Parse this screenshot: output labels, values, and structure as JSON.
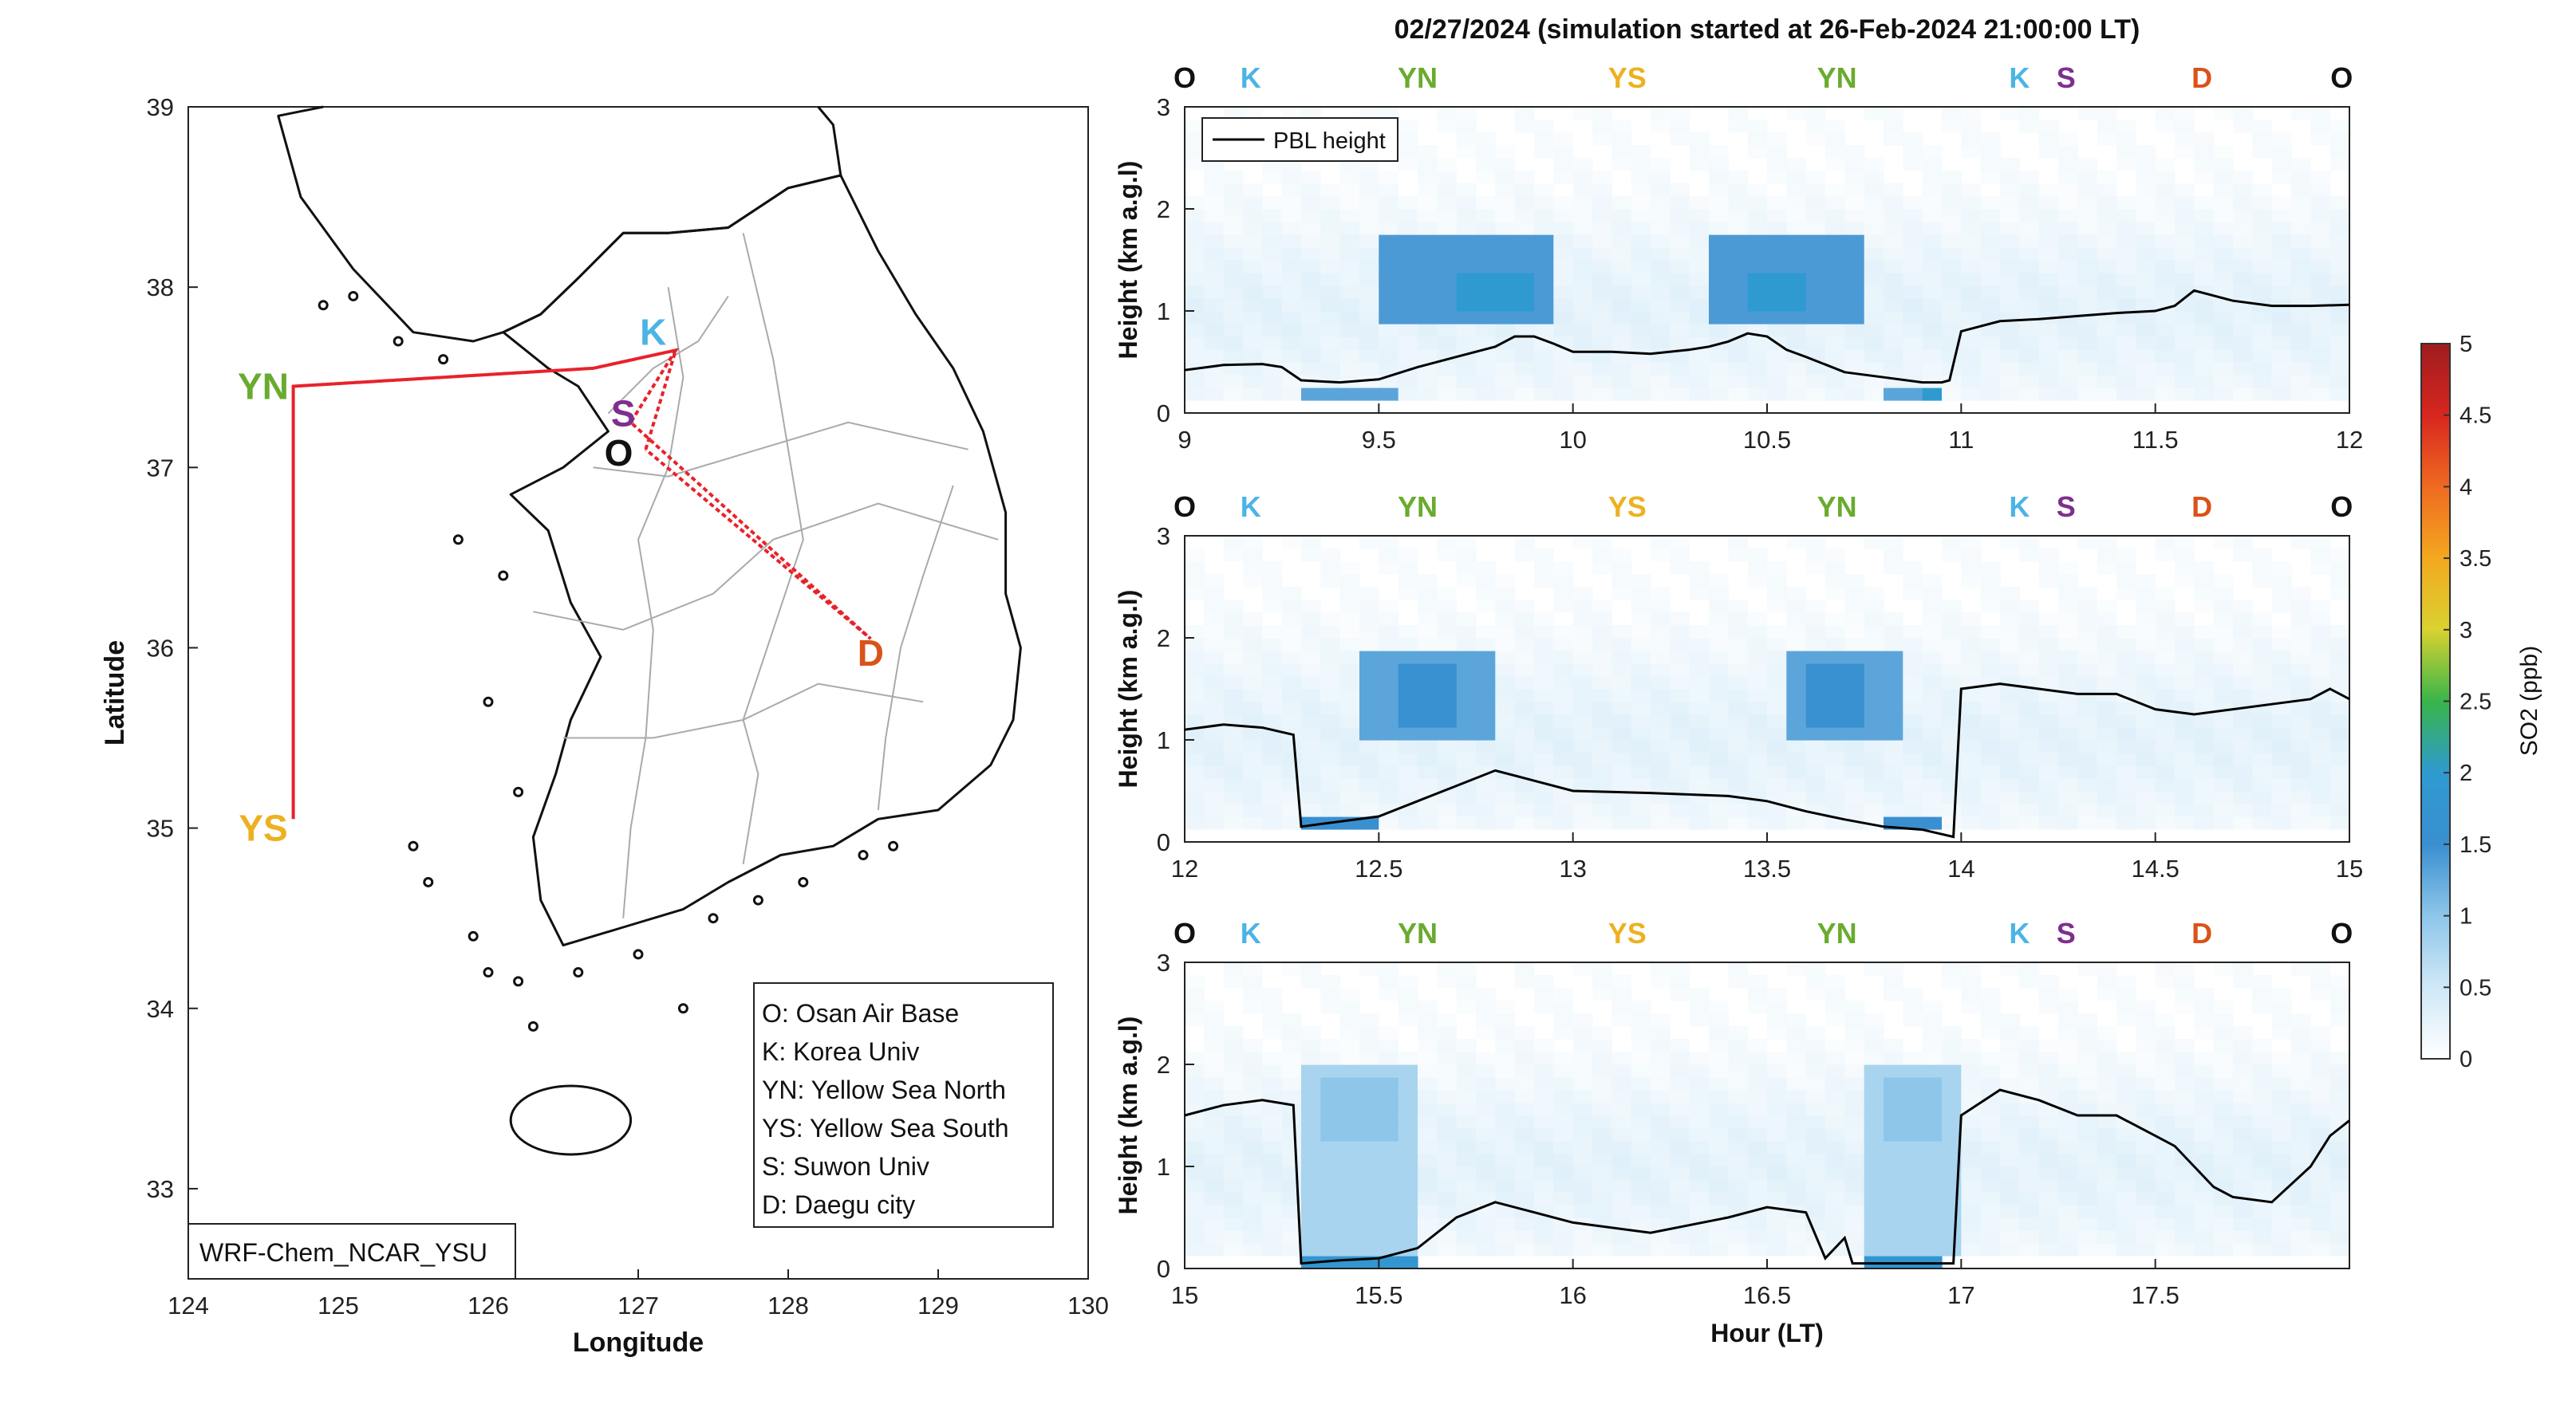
{
  "title": "02/27/2024 (simulation started at 26-Feb-2024 21:00:00 LT)",
  "colors": {
    "O": "#111111",
    "K": "#4cb4e4",
    "YN": "#6aab2e",
    "YS": "#edb120",
    "S": "#7e2f8e",
    "D": "#d95319",
    "track": "#e8222a",
    "pbl": "#000000"
  },
  "map": {
    "xlabel": "Longitude",
    "ylabel": "Latitude",
    "xlim": [
      124,
      130
    ],
    "ylim": [
      32.5,
      39
    ],
    "xticks": [
      "124",
      "125",
      "126",
      "127",
      "128",
      "129",
      "130"
    ],
    "yticks": [
      "33",
      "34",
      "35",
      "36",
      "37",
      "38",
      "39"
    ],
    "model_label": "WRF-Chem_NCAR_YSU",
    "sites": [
      {
        "code": "YN",
        "lon": 124.7,
        "lat": 37.45,
        "label_lon": 124.5,
        "label_lat": 37.45
      },
      {
        "code": "YS",
        "lon": 124.7,
        "lat": 35.05,
        "label_lon": 124.5,
        "label_lat": 35.0
      },
      {
        "code": "K",
        "lon": 127.25,
        "lat": 37.6,
        "label_lon": 127.1,
        "label_lat": 37.75
      },
      {
        "code": "S",
        "lon": 126.95,
        "lat": 37.25,
        "label_lon": 126.9,
        "label_lat": 37.3
      },
      {
        "code": "O",
        "lon": 127.05,
        "lat": 37.1,
        "label_lon": 126.87,
        "label_lat": 37.08
      },
      {
        "code": "D",
        "lon": 128.55,
        "lat": 36.05,
        "label_lon": 128.55,
        "label_lat": 35.97
      }
    ],
    "track": [
      [
        127.05,
        37.1
      ],
      [
        127.25,
        37.65
      ],
      [
        126.7,
        37.55
      ],
      [
        124.7,
        37.45
      ],
      [
        124.7,
        35.05
      ],
      [
        124.7,
        37.45
      ],
      [
        126.7,
        37.55
      ],
      [
        127.25,
        37.65
      ],
      [
        126.95,
        37.25
      ],
      [
        128.55,
        36.05
      ],
      [
        127.05,
        37.1
      ]
    ],
    "legend": [
      "O: Osan Air Base",
      "K: Korea Univ",
      "YN: Yellow Sea North",
      "YS: Yellow Sea South",
      "S: Suwon Univ",
      "D: Daegu city"
    ]
  },
  "chart_data": {
    "type": "heatmap",
    "ylabel": "Height (km a.g.l)",
    "xlabel": "Hour (LT)",
    "ylim": [
      0,
      3
    ],
    "yticks": [
      "0",
      "1",
      "2",
      "3"
    ],
    "legend": {
      "entries": [
        "PBL height"
      ],
      "placement": "top-left"
    },
    "colorbar": {
      "label": "SO2 (ppb)",
      "range": [
        0,
        5
      ],
      "ticks": [
        "0",
        "0.5",
        "1",
        "1.5",
        "2",
        "2.5",
        "3",
        "3.5",
        "4",
        "4.5",
        "5"
      ],
      "stops": [
        "#ffffff",
        "#cfe8f7",
        "#8ec6ea",
        "#3a8fd0",
        "#2f9ad0",
        "#39b54a",
        "#d9d230",
        "#f3a81f",
        "#ef6a21",
        "#d8261f",
        "#9e1c1f"
      ]
    },
    "panels": [
      {
        "xlim": [
          9,
          12
        ],
        "xticks": [
          "9",
          "9.5",
          "10",
          "10.5",
          "11",
          "11.5",
          "12"
        ],
        "show_legend": true,
        "site_sequence": [
          {
            "code": "O",
            "hour": 9.0
          },
          {
            "code": "K",
            "hour": 9.17
          },
          {
            "code": "YN",
            "hour": 9.6
          },
          {
            "code": "YS",
            "hour": 10.14
          },
          {
            "code": "YN",
            "hour": 10.68
          },
          {
            "code": "K",
            "hour": 11.15
          },
          {
            "code": "S",
            "hour": 11.27
          },
          {
            "code": "D",
            "hour": 11.62
          },
          {
            "code": "O",
            "hour": 11.98
          }
        ],
        "pbl_hours": [
          9.0,
          9.1,
          9.2,
          9.25,
          9.3,
          9.4,
          9.5,
          9.6,
          9.7,
          9.8,
          9.85,
          9.9,
          9.95,
          10.0,
          10.1,
          10.2,
          10.3,
          10.35,
          10.4,
          10.45,
          10.5,
          10.55,
          10.6,
          10.7,
          10.8,
          10.9,
          10.95,
          10.97,
          11.0,
          11.1,
          11.2,
          11.3,
          11.4,
          11.5,
          11.55,
          11.6,
          11.65,
          11.7,
          11.8,
          11.9,
          12.0
        ],
        "pbl_km": [
          0.42,
          0.47,
          0.48,
          0.45,
          0.32,
          0.3,
          0.33,
          0.45,
          0.55,
          0.65,
          0.75,
          0.75,
          0.68,
          0.6,
          0.6,
          0.58,
          0.62,
          0.65,
          0.7,
          0.78,
          0.75,
          0.62,
          0.55,
          0.4,
          0.35,
          0.3,
          0.3,
          0.32,
          0.8,
          0.9,
          0.92,
          0.95,
          0.98,
          1.0,
          1.05,
          1.2,
          1.15,
          1.1,
          1.05,
          1.05,
          1.06
        ],
        "plumes": [
          {
            "h0": 9.5,
            "h1": 9.95,
            "z0": 0.9,
            "z1": 1.7,
            "c": 1.4
          },
          {
            "h0": 9.7,
            "h1": 9.9,
            "z0": 1.05,
            "z1": 1.4,
            "c": 2.0
          },
          {
            "h0": 10.35,
            "h1": 10.75,
            "z0": 0.9,
            "z1": 1.7,
            "c": 1.4
          },
          {
            "h0": 10.45,
            "h1": 10.6,
            "z0": 1.05,
            "z1": 1.4,
            "c": 2.0
          },
          {
            "h0": 9.3,
            "h1": 9.55,
            "z0": 0.1,
            "z1": 0.3,
            "c": 1.3
          },
          {
            "h0": 10.8,
            "h1": 10.97,
            "z0": 0.1,
            "z1": 0.3,
            "c": 1.3
          },
          {
            "h0": 10.9,
            "h1": 10.97,
            "z0": 0.1,
            "z1": 0.25,
            "c": 2.0
          }
        ]
      },
      {
        "xlim": [
          12,
          15
        ],
        "xticks": [
          "12",
          "12.5",
          "13",
          "13.5",
          "14",
          "14.5",
          "15"
        ],
        "show_legend": false,
        "site_sequence": [
          {
            "code": "O",
            "hour": 12.0
          },
          {
            "code": "K",
            "hour": 12.17
          },
          {
            "code": "YN",
            "hour": 12.6
          },
          {
            "code": "YS",
            "hour": 13.14
          },
          {
            "code": "YN",
            "hour": 13.68
          },
          {
            "code": "K",
            "hour": 14.15
          },
          {
            "code": "S",
            "hour": 14.27
          },
          {
            "code": "D",
            "hour": 14.62
          },
          {
            "code": "O",
            "hour": 14.98
          }
        ],
        "pbl_hours": [
          12.0,
          12.1,
          12.2,
          12.28,
          12.3,
          12.4,
          12.5,
          12.6,
          12.7,
          12.8,
          12.9,
          13.0,
          13.2,
          13.4,
          13.5,
          13.6,
          13.7,
          13.8,
          13.9,
          13.98,
          14.0,
          14.1,
          14.2,
          14.3,
          14.4,
          14.5,
          14.6,
          14.7,
          14.8,
          14.9,
          14.95,
          15.0
        ],
        "pbl_km": [
          1.1,
          1.15,
          1.12,
          1.05,
          0.15,
          0.2,
          0.25,
          0.4,
          0.55,
          0.7,
          0.6,
          0.5,
          0.48,
          0.45,
          0.4,
          0.3,
          0.22,
          0.15,
          0.12,
          0.05,
          1.5,
          1.55,
          1.5,
          1.45,
          1.45,
          1.3,
          1.25,
          1.3,
          1.35,
          1.4,
          1.5,
          1.4
        ],
        "plumes": [
          {
            "h0": 12.45,
            "h1": 12.8,
            "z0": 1.0,
            "z1": 1.9,
            "c": 1.3
          },
          {
            "h0": 12.55,
            "h1": 12.72,
            "z0": 1.1,
            "z1": 1.7,
            "c": 1.6
          },
          {
            "h0": 13.55,
            "h1": 13.85,
            "z0": 1.0,
            "z1": 1.9,
            "c": 1.3
          },
          {
            "h0": 13.62,
            "h1": 13.75,
            "z0": 1.1,
            "z1": 1.7,
            "c": 1.6
          },
          {
            "h0": 12.3,
            "h1": 12.5,
            "z0": 0.1,
            "z1": 0.25,
            "c": 1.5
          },
          {
            "h0": 12.3,
            "h1": 12.4,
            "z0": 0.1,
            "z1": 0.15,
            "c": 2.1
          },
          {
            "h0": 13.8,
            "h1": 13.95,
            "z0": 0.1,
            "z1": 0.25,
            "c": 1.5
          },
          {
            "h0": 13.85,
            "h1": 13.95,
            "z0": 0.1,
            "z1": 0.15,
            "c": 2.1
          }
        ]
      },
      {
        "xlim": [
          15,
          18
        ],
        "xticks": [
          "15",
          "15.5",
          "16",
          "16.5",
          "17",
          "17.5"
        ],
        "show_legend": false,
        "site_sequence": [
          {
            "code": "O",
            "hour": 15.0
          },
          {
            "code": "K",
            "hour": 15.17
          },
          {
            "code": "YN",
            "hour": 15.6
          },
          {
            "code": "YS",
            "hour": 16.14
          },
          {
            "code": "YN",
            "hour": 16.68
          },
          {
            "code": "K",
            "hour": 17.15
          },
          {
            "code": "S",
            "hour": 17.27
          },
          {
            "code": "D",
            "hour": 17.62
          },
          {
            "code": "O",
            "hour": 17.98
          }
        ],
        "pbl_hours": [
          15.0,
          15.1,
          15.2,
          15.28,
          15.3,
          15.4,
          15.5,
          15.6,
          15.7,
          15.8,
          15.9,
          16.0,
          16.2,
          16.4,
          16.5,
          16.6,
          16.65,
          16.7,
          16.72,
          16.8,
          16.9,
          16.98,
          17.0,
          17.1,
          17.2,
          17.3,
          17.4,
          17.5,
          17.55,
          17.6,
          17.65,
          17.7,
          17.8,
          17.9,
          17.95,
          18.0
        ],
        "pbl_km": [
          1.5,
          1.6,
          1.65,
          1.6,
          0.05,
          0.08,
          0.1,
          0.2,
          0.5,
          0.65,
          0.55,
          0.45,
          0.35,
          0.5,
          0.6,
          0.55,
          0.1,
          0.3,
          0.05,
          0.05,
          0.05,
          0.05,
          1.5,
          1.75,
          1.65,
          1.5,
          1.5,
          1.3,
          1.2,
          1.0,
          0.8,
          0.7,
          0.65,
          1.0,
          1.3,
          1.45
        ],
        "plumes": [
          {
            "h0": 15.3,
            "h1": 15.6,
            "z0": 0.1,
            "z1": 2.0,
            "c": 0.8
          },
          {
            "h0": 15.35,
            "h1": 15.55,
            "z0": 1.3,
            "z1": 1.9,
            "c": 1.0
          },
          {
            "h0": 16.75,
            "h1": 17.0,
            "z0": 0.1,
            "z1": 2.0,
            "c": 0.8
          },
          {
            "h0": 16.8,
            "h1": 16.95,
            "z0": 1.3,
            "z1": 1.9,
            "c": 1.0
          },
          {
            "h0": 15.3,
            "h1": 15.6,
            "z0": 0.05,
            "z1": 0.15,
            "c": 1.8
          },
          {
            "h0": 16.75,
            "h1": 16.95,
            "z0": 0.05,
            "z1": 0.15,
            "c": 1.8
          }
        ]
      }
    ]
  }
}
